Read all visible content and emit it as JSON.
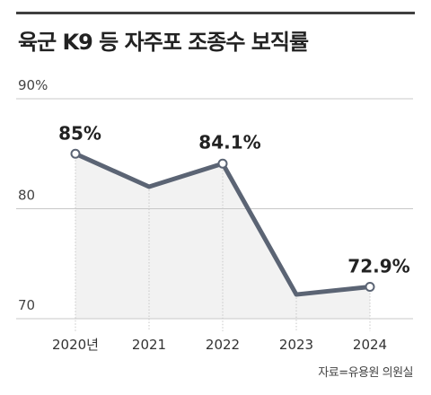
{
  "title": "육군 K9 등 자주포 조종수 보직률",
  "source": "자료=유용원 의원실",
  "colors": {
    "line": "#5b6474",
    "area": "#f2f2f2",
    "grid": "#c8c8c8",
    "text": "#222222"
  },
  "chart_data": {
    "type": "line",
    "title": "육군 K9 등 자주포 조종수 보직률",
    "categories": [
      "2020년",
      "2021",
      "2022",
      "2023",
      "2024"
    ],
    "values": [
      85,
      82,
      84.1,
      72.2,
      72.9
    ],
    "point_labels": [
      "85%",
      "",
      "84.1%",
      "",
      "72.9%"
    ],
    "labeled_points": [
      0,
      2,
      4
    ],
    "ytick_labels": [
      "90%",
      "80",
      "70"
    ],
    "ytick_values": [
      90,
      80,
      70
    ],
    "ylim": [
      70,
      90
    ],
    "grid": true,
    "legend": "none",
    "area_fill": true
  }
}
